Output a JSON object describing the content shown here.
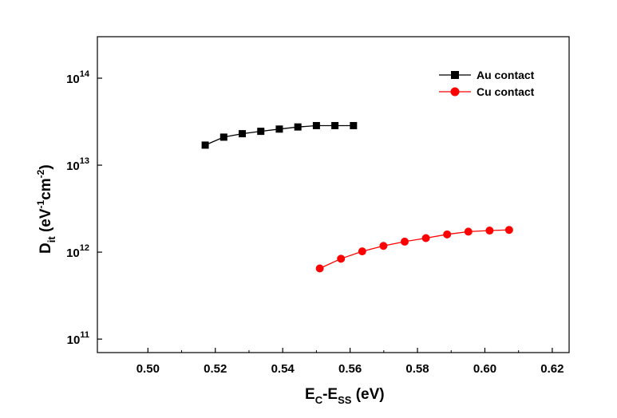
{
  "chart_data": {
    "type": "scatter",
    "xlabel": {
      "main": "E",
      "sub1": "C",
      "dash": "-E",
      "sub2": "SS",
      "unit": " (eV)"
    },
    "ylabel": {
      "main": "D",
      "sub": "it",
      "pre": " (eV",
      "sup1": "-1",
      "mid": "cm",
      "sup2": "-2",
      "post": ")"
    },
    "xlim": [
      0.485,
      0.625
    ],
    "ylim": [
      70000000000.0,
      300000000000000.0
    ],
    "yscale": "log",
    "x_ticks": [
      0.5,
      0.52,
      0.54,
      0.56,
      0.58,
      0.6,
      0.62
    ],
    "x_tick_labels": [
      "0.50",
      "0.52",
      "0.54",
      "0.56",
      "0.58",
      "0.60",
      "0.62"
    ],
    "y_ticks": [
      {
        "value": 100000000000.0,
        "base": "10",
        "exp": "11"
      },
      {
        "value": 1000000000000.0,
        "base": "10",
        "exp": "12"
      },
      {
        "value": 10000000000000.0,
        "base": "10",
        "exp": "13"
      },
      {
        "value": 100000000000000.0,
        "base": "10",
        "exp": "14"
      }
    ],
    "legend_position": "top-right",
    "series": [
      {
        "name": "Au contact",
        "color": "#000000",
        "marker": "square",
        "x": [
          0.517,
          0.5225,
          0.528,
          0.5335,
          0.539,
          0.5445,
          0.55,
          0.5555,
          0.561
        ],
        "y": [
          17000000000000.0,
          21000000000000.0,
          23000000000000.0,
          24500000000000.0,
          26000000000000.0,
          27500000000000.0,
          28500000000000.0,
          28500000000000.0,
          28500000000000.0
        ]
      },
      {
        "name": "Cu contact",
        "color": "#ff0000",
        "marker": "circle",
        "x": [
          0.551,
          0.5573,
          0.5636,
          0.5699,
          0.5762,
          0.5825,
          0.5888,
          0.5951,
          0.6014,
          0.6072
        ],
        "y": [
          650000000000.0,
          840000000000.0,
          1020000000000.0,
          1180000000000.0,
          1320000000000.0,
          1450000000000.0,
          1600000000000.0,
          1720000000000.0,
          1770000000000.0,
          1800000000000.0
        ]
      }
    ]
  }
}
